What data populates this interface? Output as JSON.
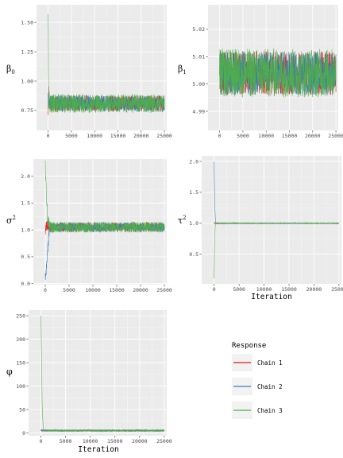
{
  "chart_data": [
    {
      "id": "beta0",
      "type": "line",
      "ylabel": "β",
      "ylabel_sub": "0",
      "xlabel": "",
      "xlim": [
        -2500,
        25500
      ],
      "ylim": [
        0.58,
        1.65
      ],
      "xticks": [
        0,
        5000,
        10000,
        15000,
        20000,
        25000
      ],
      "yticks": [
        0.75,
        1.0,
        1.25,
        1.5
      ],
      "ytick_labels": [
        "0.75",
        "1.00",
        "1.25",
        "1.50"
      ],
      "x": [
        0,
        120,
        300,
        700,
        25000
      ],
      "series": [
        {
          "name": "Chain 1",
          "values": [
            0.78,
            0.9,
            0.82,
            0.81,
            0.81
          ],
          "band": 0.07
        },
        {
          "name": "Chain 2",
          "values": [
            0.85,
            0.8,
            0.82,
            0.81,
            0.81
          ],
          "band": 0.07
        },
        {
          "name": "Chain 3",
          "values": [
            1.6,
            0.85,
            0.8,
            0.81,
            0.81
          ],
          "band": 0.08
        }
      ]
    },
    {
      "id": "beta1",
      "type": "line",
      "ylabel": "β",
      "ylabel_sub": "1",
      "xlabel": "",
      "xlim": [
        -2500,
        25500
      ],
      "ylim": [
        4.983,
        5.029
      ],
      "xticks": [
        0,
        5000,
        10000,
        15000,
        20000,
        25000
      ],
      "yticks": [
        4.99,
        5.0,
        5.01,
        5.02
      ],
      "ytick_labels": [
        "4.99",
        "5.00",
        "5.01",
        "5.02"
      ],
      "x": [
        0,
        25000
      ],
      "series": [
        {
          "name": "Chain 1",
          "values": [
            5.004,
            5.004
          ],
          "band": 0.008
        },
        {
          "name": "Chain 2",
          "values": [
            5.004,
            5.004
          ],
          "band": 0.008
        },
        {
          "name": "Chain 3",
          "values": [
            5.004,
            5.004
          ],
          "band": 0.009
        }
      ]
    },
    {
      "id": "sigma2",
      "type": "line",
      "ylabel": "σ",
      "ylabel_sub": "2",
      "xlabel": "",
      "xlim": [
        -2500,
        25500
      ],
      "ylim": [
        -0.02,
        2.32
      ],
      "xticks": [
        0,
        5000,
        10000,
        15000,
        20000,
        25000
      ],
      "yticks": [
        0.0,
        0.5,
        1.0,
        1.5,
        2.0
      ],
      "ytick_labels": [
        "0.0",
        "0.5",
        "1.0",
        "1.5",
        "2.0"
      ],
      "x": [
        0,
        250,
        500,
        800,
        1100,
        25000
      ],
      "series": [
        {
          "name": "Chain 1",
          "values": [
            1.0,
            1.1,
            1.05,
            1.05,
            1.05,
            1.05
          ],
          "band": 0.09
        },
        {
          "name": "Chain 2",
          "values": [
            0.1,
            0.3,
            0.6,
            0.95,
            1.05,
            1.05
          ],
          "band": 0.09
        },
        {
          "name": "Chain 3",
          "values": [
            2.2,
            1.6,
            1.2,
            1.1,
            1.05,
            1.05
          ],
          "band": 0.1
        }
      ]
    },
    {
      "id": "tau2",
      "type": "line",
      "ylabel": "τ",
      "ylabel_sub": "2",
      "xlabel": "Iteration",
      "xlim": [
        -2500,
        25500
      ],
      "ylim": [
        0.02,
        2.09
      ],
      "xticks": [
        0,
        5000,
        10000,
        15000,
        20000,
        25000
      ],
      "yticks": [
        0.5,
        1.0,
        1.5,
        2.0
      ],
      "ytick_labels": [
        "0.5",
        "1.0",
        "1.5",
        "2.0"
      ],
      "x": [
        0,
        40,
        120,
        250,
        400,
        700,
        25000
      ],
      "series": [
        {
          "name": "Chain 1",
          "values": [
            1.0,
            1.02,
            1.0,
            1.0,
            1.0,
            1.0,
            1.0
          ],
          "band": 0.005
        },
        {
          "name": "Chain 2",
          "values": [
            2.0,
            1.7,
            1.3,
            1.05,
            1.0,
            1.0,
            1.0
          ],
          "band": 0.005
        },
        {
          "name": "Chain 3",
          "values": [
            0.1,
            0.4,
            0.8,
            1.0,
            1.0,
            1.0,
            1.0
          ],
          "band": 0.008
        }
      ]
    },
    {
      "id": "phi",
      "type": "line",
      "ylabel": "φ",
      "ylabel_sub": "",
      "xlabel": "Iteration",
      "xlim": [
        -2500,
        25500
      ],
      "ylim": [
        -6,
        262
      ],
      "xticks": [
        0,
        5000,
        10000,
        15000,
        20000,
        25000
      ],
      "yticks": [
        0,
        50,
        100,
        150,
        200,
        250
      ],
      "ytick_labels": [
        "0",
        "50",
        "100",
        "150",
        "200",
        "250"
      ],
      "x": [
        0,
        100,
        250,
        450,
        700,
        25000
      ],
      "series": [
        {
          "name": "Chain 1",
          "values": [
            5,
            6,
            5,
            5,
            5,
            5
          ],
          "band": 1.5
        },
        {
          "name": "Chain 2",
          "values": [
            5,
            5,
            5,
            5,
            5,
            5
          ],
          "band": 1.5
        },
        {
          "name": "Chain 3",
          "values": [
            250,
            180,
            60,
            12,
            5,
            5
          ],
          "band": 2.0
        }
      ]
    }
  ],
  "xtick_labels": [
    "0",
    "5000",
    "10000",
    "15000",
    "20000",
    "25000"
  ],
  "legend": {
    "title": "Response",
    "entries": [
      "Chain 1",
      "Chain 2",
      "Chain 3"
    ]
  },
  "colors": {
    "Chain 1": "#e41a1c",
    "Chain 2": "#377eb8",
    "Chain 3": "#4daf4a",
    "panel_bg": "#ebebeb",
    "grid_major": "#ffffff",
    "grid_minor": "#f4f4f4",
    "legend_bg": "#f2f2f2"
  }
}
